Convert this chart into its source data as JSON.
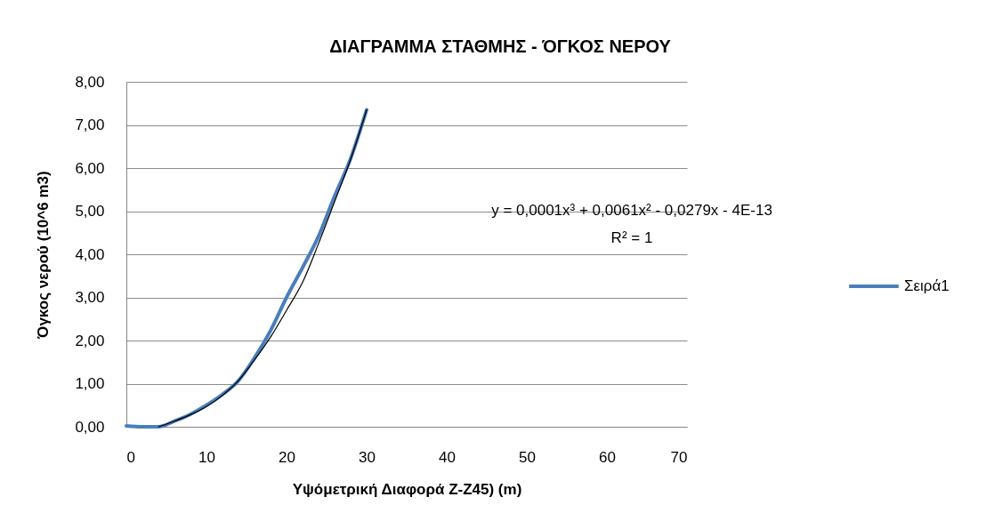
{
  "chart_data": {
    "type": "line",
    "title": "ΔΙΑΓΡΑΜΜΑ ΣΤΑΘΜΗΣ - ΌΓΚΟΣ ΝΕΡΟΥ",
    "xlabel": "Υψόμετρική Διαφορά Z-Z45) (m)",
    "ylabel": "Όγκος νερού  (10^6 m3)",
    "series": [
      {
        "name": "Σειρά1",
        "color": "#4a7ebb",
        "x": [
          0,
          2,
          4,
          6,
          8,
          10,
          12,
          14,
          16,
          18,
          20,
          22,
          24,
          26,
          28,
          30
        ],
        "values": [
          0.02,
          0.0,
          0.0,
          0.13,
          0.29,
          0.5,
          0.75,
          1.07,
          1.6,
          2.23,
          3.0,
          3.69,
          4.42,
          5.35,
          6.22,
          7.35
        ]
      },
      {
        "type": "line",
        "color": "#000000",
        "x": [
          4,
          6,
          8,
          10,
          12,
          14,
          16,
          18,
          20,
          22,
          24,
          26,
          28,
          30
        ],
        "values": [
          0.0,
          0.13,
          0.28,
          0.47,
          0.73,
          1.07,
          1.55,
          2.08,
          2.7,
          3.35,
          4.25,
          5.22,
          6.2,
          7.35
        ]
      }
    ],
    "xlim": [
      0,
      70
    ],
    "xticks": [
      0,
      10,
      20,
      30,
      40,
      50,
      60,
      70
    ],
    "ylim": [
      0,
      8
    ],
    "yticks": [
      {
        "value": 0,
        "label": "0,00"
      },
      {
        "value": 1,
        "label": "1,00"
      },
      {
        "value": 2,
        "label": "2,00"
      },
      {
        "value": 3,
        "label": "3,00"
      },
      {
        "value": 4,
        "label": "4,00"
      },
      {
        "value": 5,
        "label": "5,00"
      },
      {
        "value": 6,
        "label": "6,00"
      },
      {
        "value": 7,
        "label": "7,00"
      },
      {
        "value": 8,
        "label": "8,00"
      }
    ],
    "annotations": [
      "y = 0,0001x³ + 0,0061x² - 0,0279x - 4E-13",
      "R² = 1"
    ],
    "grid": "y",
    "legend": "right"
  }
}
